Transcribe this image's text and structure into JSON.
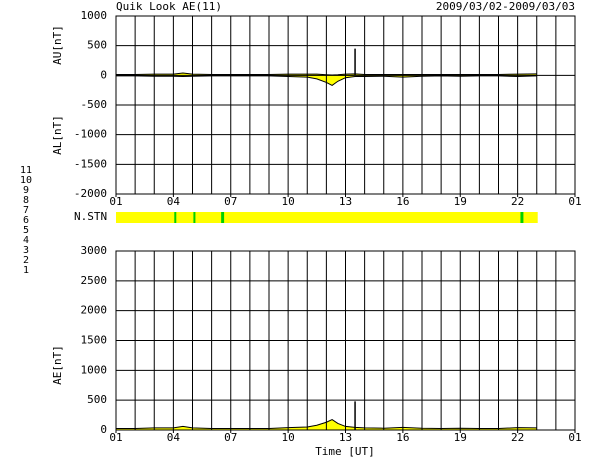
{
  "title": "Quik Look AE(11)",
  "date_range": "2009/03/02-2009/03/03",
  "x_label": "Time [UT]",
  "station_label": "N.STN",
  "station_legend": [
    {
      "label": "11",
      "color": "#00d8d8"
    },
    {
      "label": "10",
      "color": "#e000e0"
    },
    {
      "label": "9",
      "color": "#2020c0"
    },
    {
      "label": "8",
      "color": "#f0f000"
    },
    {
      "label": "7",
      "color": "#00b000"
    },
    {
      "label": "6",
      "color": "#e00000"
    },
    {
      "label": "5",
      "color": "#c8c8c8"
    },
    {
      "label": "4",
      "color": "#909090"
    },
    {
      "label": "3",
      "color": "#009090"
    },
    {
      "label": "2",
      "color": "#8000a0"
    },
    {
      "label": "1",
      "color": "#2020e0"
    }
  ],
  "station_bar": {
    "start": 0,
    "end": 22.05,
    "color": "#ffff00",
    "drop_color": "#00d000",
    "drops": [
      3.1,
      4.1,
      5.55,
      5.6,
      21.2,
      21.25
    ]
  },
  "chart_data": [
    {
      "type": "band",
      "y_labels": [
        "AU[nT]",
        "AL[nT]"
      ],
      "xlim": [
        0,
        24
      ],
      "ylim": [
        -2000,
        1000
      ],
      "yticks": [
        1000,
        500,
        0,
        -500,
        -1000,
        -1500,
        -2000
      ],
      "xticks": [
        {
          "value": 0,
          "label": "01"
        },
        {
          "value": 3,
          "label": "04"
        },
        {
          "value": 6,
          "label": "07"
        },
        {
          "value": 9,
          "label": "10"
        },
        {
          "value": 12,
          "label": "13"
        },
        {
          "value": 15,
          "label": "16"
        },
        {
          "value": 18,
          "label": "19"
        },
        {
          "value": 21,
          "label": "22"
        },
        {
          "value": 24,
          "label": "01"
        }
      ],
      "xgrid_step": 1,
      "ygrid": true,
      "fill": "#ffff00",
      "x": [
        0,
        1,
        2,
        3,
        3.5,
        4,
        5,
        6,
        7,
        8,
        9,
        10,
        10.5,
        11,
        11.3,
        11.6,
        12,
        12.5,
        13,
        14,
        15,
        16,
        17,
        18,
        19,
        20,
        21,
        22
      ],
      "series": [
        {
          "color": "#000000",
          "values": [
            15,
            15,
            20,
            20,
            40,
            20,
            15,
            15,
            15,
            15,
            20,
            20,
            20,
            10,
            5,
            10,
            20,
            25,
            15,
            15,
            15,
            15,
            15,
            15,
            15,
            15,
            20,
            25
          ]
        },
        {
          "color": "#000000",
          "values": [
            -10,
            -10,
            -15,
            -15,
            -20,
            -15,
            -10,
            -10,
            -10,
            -10,
            -20,
            -30,
            -60,
            -120,
            -170,
            -100,
            -40,
            -20,
            -20,
            -15,
            -30,
            -15,
            -10,
            -15,
            -10,
            -10,
            -20,
            -10
          ]
        }
      ],
      "spikes": {
        "x": [
          12.5
        ],
        "values": [
          450
        ]
      }
    },
    {
      "type": "area",
      "y_labels": [
        "AE[nT]"
      ],
      "xlim": [
        0,
        24
      ],
      "ylim": [
        0,
        3000
      ],
      "yticks": [
        3000,
        2500,
        2000,
        1500,
        1000,
        500,
        0
      ],
      "xticks": [
        {
          "value": 0,
          "label": "01"
        },
        {
          "value": 3,
          "label": "04"
        },
        {
          "value": 6,
          "label": "07"
        },
        {
          "value": 9,
          "label": "10"
        },
        {
          "value": 12,
          "label": "13"
        },
        {
          "value": 15,
          "label": "16"
        },
        {
          "value": 18,
          "label": "19"
        },
        {
          "value": 21,
          "label": "22"
        },
        {
          "value": 24,
          "label": "01"
        }
      ],
      "xgrid_step": 1,
      "ygrid": true,
      "fill": "#ffff00",
      "x": [
        0,
        1,
        2,
        3,
        3.5,
        4,
        5,
        6,
        7,
        8,
        9,
        10,
        10.5,
        11,
        11.3,
        11.6,
        12,
        12.5,
        13,
        14,
        15,
        16,
        17,
        18,
        19,
        20,
        21,
        22
      ],
      "series": [
        {
          "color": "#000000",
          "values": [
            25,
            25,
            35,
            35,
            60,
            35,
            25,
            25,
            25,
            25,
            40,
            50,
            80,
            130,
            175,
            110,
            60,
            45,
            35,
            30,
            45,
            30,
            25,
            30,
            25,
            25,
            40,
            35
          ]
        }
      ],
      "spikes": {
        "x": [
          12.5
        ],
        "values": [
          480
        ]
      }
    }
  ]
}
